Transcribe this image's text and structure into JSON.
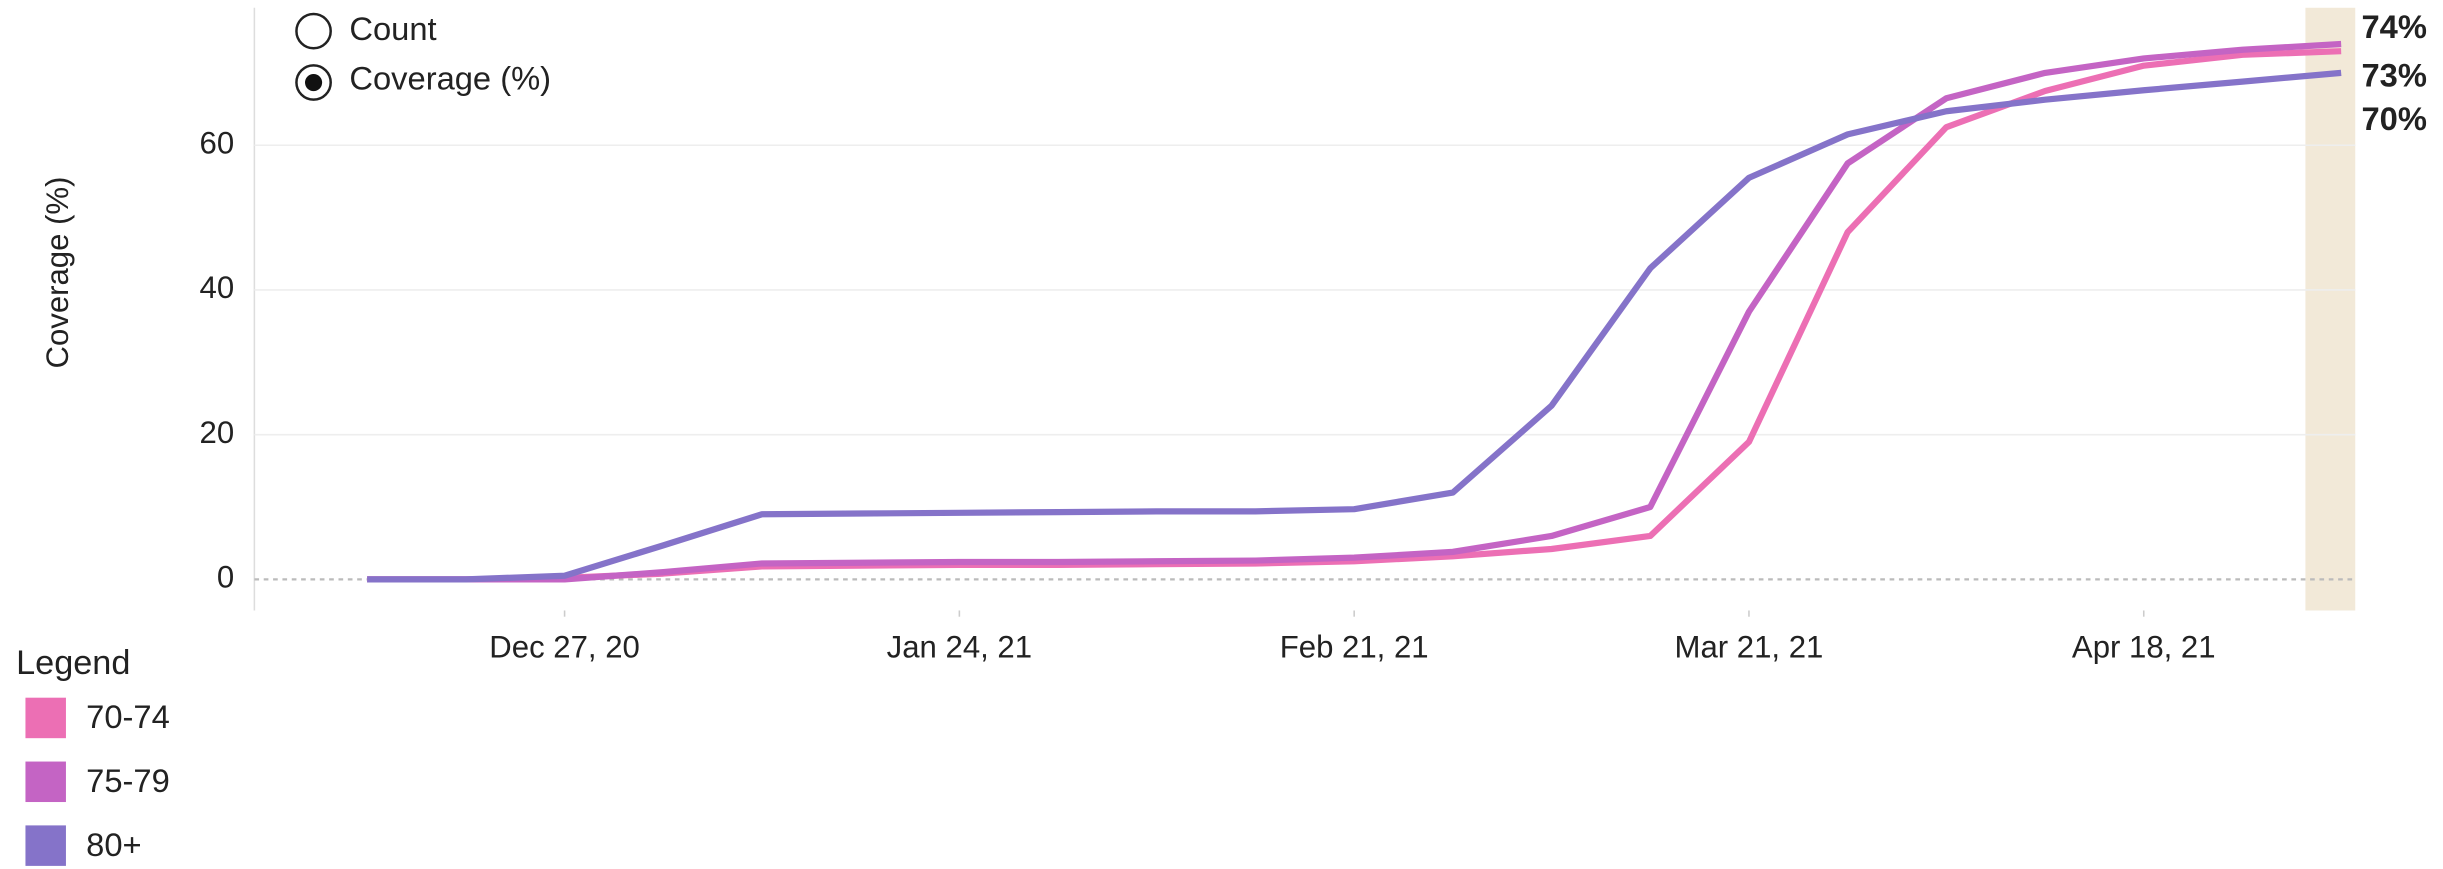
{
  "controls": {
    "options": [
      "Count",
      "Coverage (%)"
    ],
    "selected": "Coverage (%)"
  },
  "chart_data": {
    "type": "line",
    "y_label": "Coverage (%)",
    "legend_title": "Legend",
    "x": [
      "2020-12-13",
      "2020-12-20",
      "2020-12-27",
      "2021-01-03",
      "2021-01-10",
      "2021-01-17",
      "2021-01-24",
      "2021-01-31",
      "2021-02-07",
      "2021-02-14",
      "2021-02-21",
      "2021-02-28",
      "2021-03-07",
      "2021-03-14",
      "2021-03-21",
      "2021-03-28",
      "2021-04-04",
      "2021-04-11",
      "2021-04-18",
      "2021-04-25",
      "2021-05-02"
    ],
    "xlim": [
      "2020-12-05",
      "2021-05-03"
    ],
    "xticks": [
      {
        "value": "2020-12-27",
        "label": "Dec 27, 20"
      },
      {
        "value": "2021-01-24",
        "label": "Jan 24, 21"
      },
      {
        "value": "2021-02-21",
        "label": "Feb 21, 21"
      },
      {
        "value": "2021-03-21",
        "label": "Mar 21, 21"
      },
      {
        "value": "2021-04-18",
        "label": "Apr 18, 21"
      }
    ],
    "ylim": [
      -4.3,
      79
    ],
    "yticks": [
      0,
      20,
      40,
      60
    ],
    "grid": true,
    "series": [
      {
        "name": "70-74",
        "color": "#ec6fb4",
        "values": [
          0,
          0,
          0.2,
          0.8,
          1.8,
          1.9,
          2.0,
          2.0,
          2.1,
          2.2,
          2.5,
          3.2,
          4.2,
          6,
          19,
          48,
          62.5,
          67.5,
          71,
          72.5,
          73
        ],
        "value_labels": [
          null,
          null,
          null,
          null,
          null,
          null,
          null,
          null,
          null,
          null,
          null,
          null,
          null,
          null,
          null,
          null,
          null,
          null,
          null,
          null,
          "73%"
        ]
      },
      {
        "name": "75-79",
        "color": "#c464c4",
        "values": [
          0,
          0,
          0,
          1,
          2.2,
          2.3,
          2.4,
          2.4,
          2.5,
          2.6,
          3.0,
          3.8,
          6,
          10,
          37,
          57.5,
          66.5,
          70,
          72,
          73.2,
          74
        ],
        "value_labels": [
          null,
          null,
          null,
          null,
          null,
          null,
          null,
          null,
          null,
          null,
          null,
          null,
          null,
          null,
          null,
          null,
          null,
          null,
          null,
          null,
          "74%"
        ]
      },
      {
        "name": "80+",
        "color": "#8573c9",
        "values": [
          0,
          0,
          0.5,
          4.7,
          9,
          9.1,
          9.2,
          9.3,
          9.4,
          9.4,
          9.7,
          12,
          24,
          43,
          55.5,
          61.5,
          64.7,
          66.3,
          67.6,
          68.8,
          70
        ],
        "value_labels": [
          null,
          null,
          null,
          null,
          null,
          null,
          null,
          null,
          null,
          null,
          null,
          null,
          null,
          null,
          null,
          null,
          null,
          null,
          null,
          null,
          "70%"
        ]
      }
    ]
  }
}
